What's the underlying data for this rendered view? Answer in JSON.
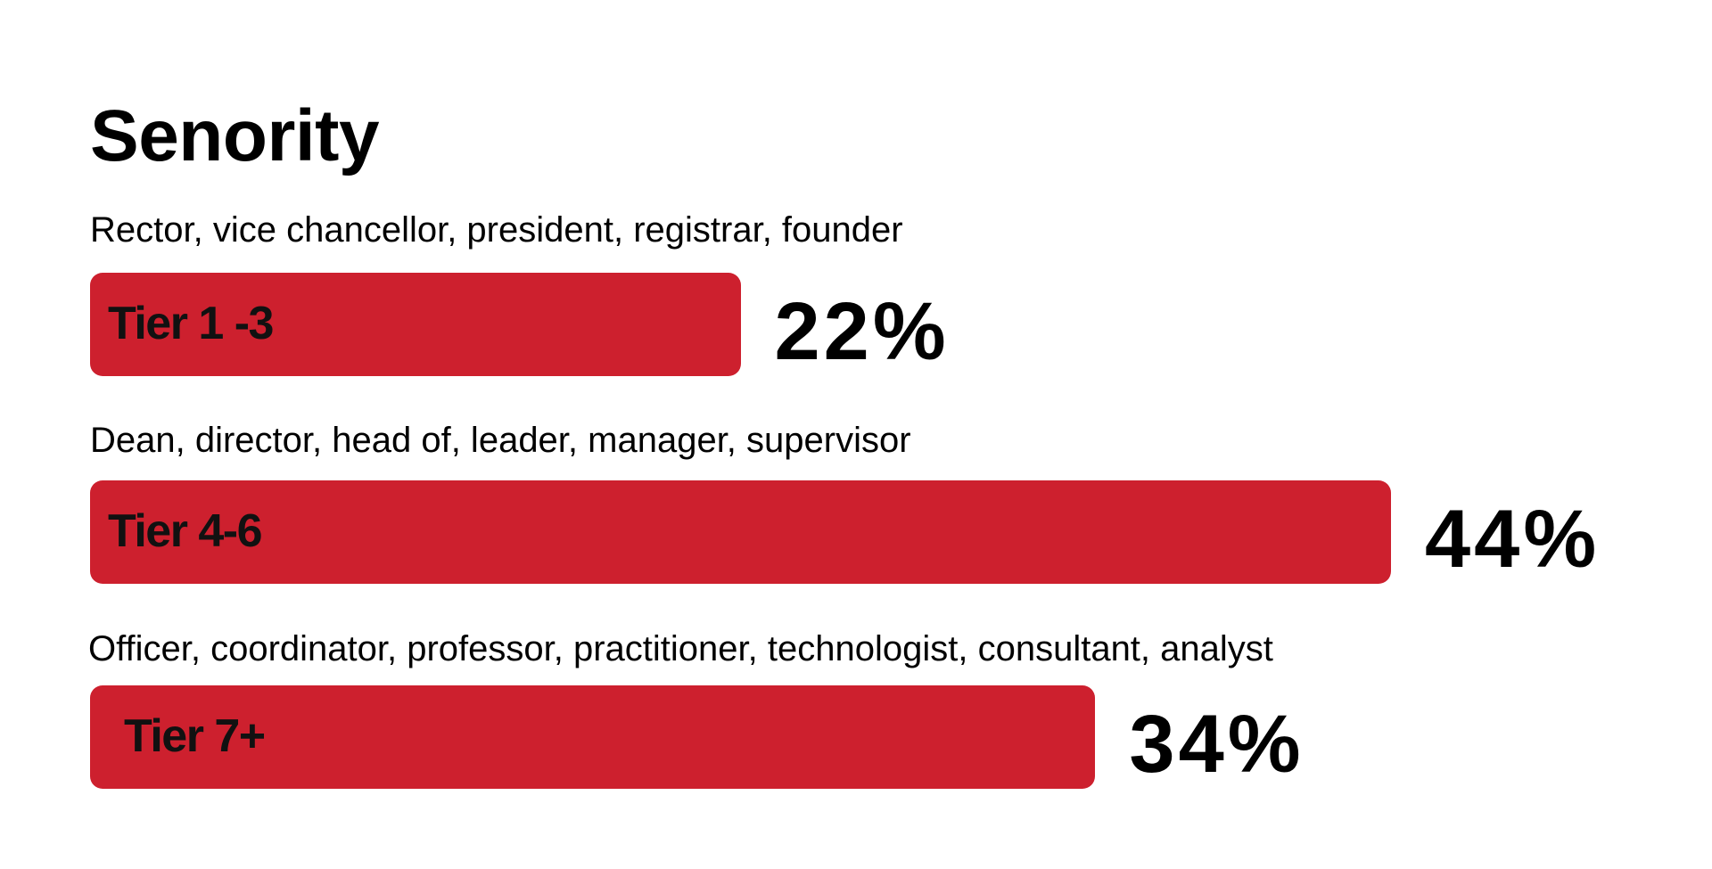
{
  "chart_data": {
    "type": "bar",
    "orientation": "horizontal",
    "title": "Senority",
    "categories": [
      "Tier 1 -3",
      "Tier 4-6",
      "Tier 7+"
    ],
    "descriptions": [
      "Rector, vice chancellor, president, registrar, founder",
      "Dean, director, head of, leader, manager, supervisor",
      "Officer, coordinator, professor, practitioner, technologist, consultant, analyst"
    ],
    "values": [
      22,
      44,
      34
    ],
    "value_labels": [
      "22%",
      "44%",
      "34%"
    ],
    "xlim": [
      0,
      44
    ],
    "grid": false,
    "legend": "none",
    "bar_color": "#cd202e"
  }
}
